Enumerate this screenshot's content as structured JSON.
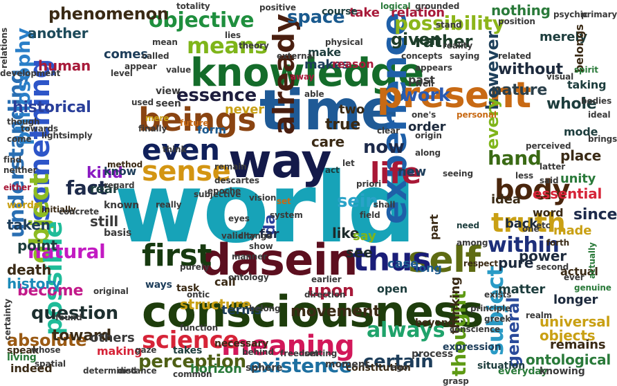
{
  "words": [
    {
      "text": "world",
      "color": "#17a3b8"
    },
    {
      "text": "consciousness",
      "color": "#1e3d0c"
    },
    {
      "text": "time",
      "color": "#1f5a96"
    },
    {
      "text": "knowledge",
      "color": "#146c2a"
    },
    {
      "text": "dasein",
      "color": "#5c0f1f"
    },
    {
      "text": "way",
      "color": "#141a4a"
    },
    {
      "text": "experience",
      "color": "#1e5fa8"
    },
    {
      "text": "present",
      "color": "#c86a14"
    },
    {
      "text": "beings",
      "color": "#8a4411"
    },
    {
      "text": "something",
      "color": "#2d55c8"
    },
    {
      "text": "first",
      "color": "#173a10"
    },
    {
      "text": "self",
      "color": "#5e6b12"
    },
    {
      "text": "thus",
      "color": "#1a1d78"
    },
    {
      "text": "meaning",
      "color": "#d2185a"
    },
    {
      "text": "object",
      "color": "#8dbb22"
    },
    {
      "text": "already",
      "color": "#4a1f10"
    },
    {
      "text": "sense",
      "color": "#d39512"
    },
    {
      "text": "even",
      "color": "#10205a"
    },
    {
      "text": "life",
      "color": "#a81836"
    },
    {
      "text": "body",
      "color": "#4a260d"
    },
    {
      "text": "possible",
      "color": "#1fbc99"
    },
    {
      "text": "truth",
      "color": "#c9a014"
    },
    {
      "text": "science",
      "color": "#d62438"
    },
    {
      "text": "existence",
      "color": "#1d6fa0"
    },
    {
      "text": "subject",
      "color": "#2a9bc6"
    },
    {
      "text": "understanding",
      "color": "#2a6fb3"
    },
    {
      "text": "philosophy",
      "color": "#2a7fc8"
    },
    {
      "text": "means",
      "color": "#7fb51a"
    },
    {
      "text": "objective",
      "color": "#1f8f3e"
    },
    {
      "text": "always",
      "color": "#1fa36b"
    },
    {
      "text": "perception",
      "color": "#4e5f15"
    },
    {
      "text": "thought",
      "color": "#5e9a14"
    },
    {
      "text": "within",
      "color": "#1d2f7a"
    },
    {
      "text": "natural",
      "color": "#c21ac2"
    },
    {
      "text": "question",
      "color": "#1d2f2f"
    },
    {
      "text": "essence",
      "color": "#1d1d3d"
    },
    {
      "text": "phenomenon",
      "color": "#3a2a15"
    },
    {
      "text": "space",
      "color": "#1a5a8e"
    },
    {
      "text": "fact",
      "color": "#1d2a4a"
    },
    {
      "text": "possibility",
      "color": "#8cb51a"
    },
    {
      "text": "however",
      "color": "#1d3f5a"
    },
    {
      "text": "hand",
      "color": "#3a6a14"
    },
    {
      "text": "given",
      "color": "#1d3d2a"
    },
    {
      "text": "sein",
      "color": "#2aa3c8"
    },
    {
      "text": "now",
      "color": "#1d2a4a"
    },
    {
      "text": "work",
      "color": "#2a5ab3"
    },
    {
      "text": "nature",
      "color": "#2a3f4a"
    },
    {
      "text": "upon",
      "color": "#a81a3a"
    },
    {
      "text": "certain",
      "color": "#1d3d5a"
    },
    {
      "text": "absolute",
      "color": "#9a5a14"
    },
    {
      "text": "general",
      "color": "#2a4a9a"
    },
    {
      "text": "become",
      "color": "#c21a8a"
    },
    {
      "text": "toward",
      "color": "#3a2a15"
    },
    {
      "text": "movement",
      "color": "#3a2a15"
    },
    {
      "text": "structure",
      "color": "#c9a014"
    },
    {
      "text": "rather",
      "color": "#1d3d2a"
    },
    {
      "text": "nothing",
      "color": "#2a7a3a"
    },
    {
      "text": "every",
      "color": "#7fb51a"
    },
    {
      "text": "whole",
      "color": "#1d3d3d"
    },
    {
      "text": "without",
      "color": "#1d2a3d"
    },
    {
      "text": "since",
      "color": "#1d2a4a"
    },
    {
      "text": "true",
      "color": "#3a2a15"
    },
    {
      "text": "another",
      "color": "#1d4a5a"
    },
    {
      "text": "human",
      "color": "#a81a3a"
    },
    {
      "text": "historical",
      "color": "#2a3f9a"
    },
    {
      "text": "kind",
      "color": "#8a1ac2"
    },
    {
      "text": "real",
      "color": "#1d3d3d"
    },
    {
      "text": "still",
      "color": "#3a3a3a"
    },
    {
      "text": "taken",
      "color": "#1d3d5a"
    },
    {
      "text": "point",
      "color": "#1d3d3d"
    },
    {
      "text": "death",
      "color": "#3a2a15"
    },
    {
      "text": "history",
      "color": "#1a8ab8"
    },
    {
      "text": "like",
      "color": "#1d2a2a"
    },
    {
      "text": "see",
      "color": "#1d2a2a"
    },
    {
      "text": "say",
      "color": "#7fb51a"
    },
    {
      "text": "terms",
      "color": "#1d3d5a"
    },
    {
      "text": "case",
      "color": "#1d5a8e"
    },
    {
      "text": "thinking",
      "color": "#3a2a15"
    },
    {
      "text": "objects",
      "color": "#c9a014"
    },
    {
      "text": "ontological",
      "color": "#2a7a3a"
    },
    {
      "text": "universal",
      "color": "#c9a014"
    },
    {
      "text": "remains",
      "color": "#3a2a15"
    },
    {
      "text": "others",
      "color": "#3a3a3a"
    },
    {
      "text": "making",
      "color": "#d62438"
    },
    {
      "text": "indeed",
      "color": "#3a2a15"
    },
    {
      "text": "horizon",
      "color": "#2a7a3a"
    },
    {
      "text": "pure",
      "color": "#1d2a3d"
    },
    {
      "text": "power",
      "color": "#1d2a3d"
    },
    {
      "text": "matter",
      "color": "#1d3d3d"
    },
    {
      "text": "actual",
      "color": "#3a2a15"
    },
    {
      "text": "longer",
      "color": "#1d2a3d"
    },
    {
      "text": "made",
      "color": "#c9a014"
    },
    {
      "text": "essential",
      "color": "#d62438"
    },
    {
      "text": "unity",
      "color": "#2a7a3a"
    },
    {
      "text": "idea",
      "color": "#3a2a15"
    },
    {
      "text": "place",
      "color": "#3a2a15"
    },
    {
      "text": "order",
      "color": "#1d2a3d"
    },
    {
      "text": "back",
      "color": "#1d2a3d"
    },
    {
      "text": "part",
      "color": "#3a2a15"
    },
    {
      "text": "new",
      "color": "#1d3d5a"
    },
    {
      "text": "two",
      "color": "#3a2a15"
    },
    {
      "text": "da",
      "color": "#2a3f9a"
    },
    {
      "text": "far",
      "color": "#1d2a4a"
    },
    {
      "text": "care",
      "color": "#3a2a15"
    },
    {
      "text": "never",
      "color": "#c9a014"
    },
    {
      "text": "form",
      "color": "#1d5a8e"
    },
    {
      "text": "makes",
      "color": "#1d3d5a"
    },
    {
      "text": "make",
      "color": "#1d3d3d"
    },
    {
      "text": "relation",
      "color": "#a81a3a"
    },
    {
      "text": "take",
      "color": "#a81a3a"
    },
    {
      "text": "merely",
      "color": "#1d3d3d"
    },
    {
      "text": "belongs",
      "color": "#3a2a15"
    },
    {
      "text": "taking",
      "color": "#1d3d3d"
    },
    {
      "text": "past",
      "color": "#3a3a3a"
    },
    {
      "text": "comes",
      "color": "#1d3d5a"
    },
    {
      "text": "course",
      "color": "#1d3d3d"
    },
    {
      "text": "reason",
      "color": "#a81a3a"
    },
    {
      "text": "know",
      "color": "#1d3d5a"
    },
    {
      "text": "word",
      "color": "#3a2a15"
    },
    {
      "text": "mode",
      "color": "#1d3d3d"
    },
    {
      "text": "view",
      "color": "#3a3a3a"
    },
    {
      "text": "seen",
      "color": "#3a3a3a"
    },
    {
      "text": "open",
      "color": "#1d3d3d"
    },
    {
      "text": "long",
      "color": "#1d5a8e"
    },
    {
      "text": "call",
      "color": "#3a2a15"
    },
    {
      "text": "ways",
      "color": "#1d3d5a"
    },
    {
      "text": "basis",
      "color": "#3a3a3a"
    },
    {
      "text": "task",
      "color": "#3a2a15"
    },
    {
      "text": "known",
      "color": "#3a3a3a"
    },
    {
      "text": "speak",
      "color": "#3a2a15"
    },
    {
      "text": "living",
      "color": "#2a7a3a"
    },
    {
      "text": "words",
      "color": "#c9a014"
    },
    {
      "text": "situation",
      "color": "#1d3d3d"
    },
    {
      "text": "sphere",
      "color": "#3a3a3a"
    },
    {
      "text": "necessary",
      "color": "#3a2a15"
    },
    {
      "text": "expression",
      "color": "#1d3d5a"
    },
    {
      "text": "process",
      "color": "#3a3a3a"
    },
    {
      "text": "beyond",
      "color": "#3a2a15"
    },
    {
      "text": "takes",
      "color": "#1d3d3d"
    },
    {
      "text": "constitution",
      "color": "#3a2a15"
    },
    {
      "text": "moment",
      "color": "#3a3a3a"
    },
    {
      "text": "common",
      "color": "#3a3a3a"
    },
    {
      "text": "everyday",
      "color": "#2a7a3a"
    },
    {
      "text": "knowing",
      "color": "#3a3a3a"
    },
    {
      "text": "genuine",
      "color": "#2a7a3a"
    },
    {
      "text": "actually",
      "color": "#2a7a3a"
    },
    {
      "text": "brings",
      "color": "#3a3a3a"
    },
    {
      "text": "future",
      "color": "#c86a14"
    },
    {
      "text": "mere",
      "color": "#c9a014"
    },
    {
      "text": "used",
      "color": "#3a3a3a"
    },
    {
      "text": "method",
      "color": "#3a2a15"
    },
    {
      "text": "regard",
      "color": "#3a3a3a"
    },
    {
      "text": "neither",
      "color": "#3a3a3a"
    },
    {
      "text": "either",
      "color": "#a81a3a"
    },
    {
      "text": "initially",
      "color": "#3a2a15"
    },
    {
      "text": "found",
      "color": "#3a3a3a"
    },
    {
      "text": "purely",
      "color": "#3a3a3a"
    },
    {
      "text": "among",
      "color": "#3a3a3a"
    },
    {
      "text": "respect",
      "color": "#3a2a15"
    },
    {
      "text": "forth",
      "color": "#3a2a15"
    },
    {
      "text": "latter",
      "color": "#3a3a3a"
    },
    {
      "text": "need",
      "color": "#1d3d3d"
    },
    {
      "text": "field",
      "color": "#3a3a3a"
    },
    {
      "text": "clear",
      "color": "#3a3a3a"
    },
    {
      "text": "act",
      "color": "#1d3d3d"
    },
    {
      "text": "set",
      "color": "#c86a14"
    },
    {
      "text": "priori",
      "color": "#3a3a3a"
    },
    {
      "text": "shall",
      "color": "#3a3a3a"
    },
    {
      "text": "origin",
      "color": "#3a3a3a"
    },
    {
      "text": "along",
      "color": "#3a3a3a"
    },
    {
      "text": "seeing",
      "color": "#3a3a3a"
    },
    {
      "text": "saying",
      "color": "#3a3a3a"
    },
    {
      "text": "appear",
      "color": "#3a3a3a"
    },
    {
      "text": "totality",
      "color": "#3a3a3a"
    },
    {
      "text": "logical",
      "color": "#2a7a3a"
    },
    {
      "text": "grounded",
      "color": "#3a3a3a"
    },
    {
      "text": "positive",
      "color": "#3a3a3a"
    },
    {
      "text": "value",
      "color": "#3a3a3a"
    },
    {
      "text": "theory",
      "color": "#3a3a3a"
    },
    {
      "text": "concepts",
      "color": "#3a3a3a"
    },
    {
      "text": "stand",
      "color": "#3a3a3a"
    },
    {
      "text": "reality",
      "color": "#3a3a3a"
    },
    {
      "text": "personal",
      "color": "#c86a14"
    },
    {
      "text": "position",
      "color": "#3a3a3a"
    },
    {
      "text": "primary",
      "color": "#3a3a3a"
    },
    {
      "text": "spirit",
      "color": "#2a7a3a"
    },
    {
      "text": "bodies",
      "color": "#3a3a3a"
    },
    {
      "text": "ideal",
      "color": "#3a3a3a"
    },
    {
      "text": "eyes",
      "color": "#3a3a3a"
    },
    {
      "text": "show",
      "color": "#3a3a3a"
    },
    {
      "text": "descartes",
      "color": "#3a3a3a"
    },
    {
      "text": "away",
      "color": "#a81a3a"
    },
    {
      "text": "able",
      "color": "#3a3a3a"
    },
    {
      "text": "mean",
      "color": "#3a3a3a"
    },
    {
      "text": "called",
      "color": "#3a3a3a"
    },
    {
      "text": "level",
      "color": "#3a3a3a"
    },
    {
      "text": "finally",
      "color": "#3a3a3a"
    },
    {
      "text": "think",
      "color": "#3a3a3a"
    },
    {
      "text": "really",
      "color": "#3a3a3a"
    },
    {
      "text": "find",
      "color": "#3a3a3a"
    },
    {
      "text": "come",
      "color": "#3a3a3a"
    },
    {
      "text": "though",
      "color": "#3a3a3a"
    },
    {
      "text": "towards",
      "color": "#3a3a3a"
    },
    {
      "text": "light",
      "color": "#3a3a3a"
    },
    {
      "text": "simply",
      "color": "#3a3a3a"
    },
    {
      "text": "concrete",
      "color": "#3a3a3a"
    },
    {
      "text": "epoche",
      "color": "#3a3a3a"
    },
    {
      "text": "system",
      "color": "#3a3a3a"
    },
    {
      "text": "ontic",
      "color": "#3a3a3a"
    },
    {
      "text": "ontology",
      "color": "#3a3a3a"
    },
    {
      "text": "whose",
      "color": "#3a3a3a"
    },
    {
      "text": "spatial",
      "color": "#3a3a3a"
    },
    {
      "text": "determined",
      "color": "#3a3a3a"
    },
    {
      "text": "distance",
      "color": "#3a3a3a"
    },
    {
      "text": "gaze",
      "color": "#3a3a3a"
    },
    {
      "text": "behind",
      "color": "#3a3a3a"
    },
    {
      "text": "freedom",
      "color": "#3a3a3a"
    },
    {
      "text": "setting",
      "color": "#3a3a3a"
    },
    {
      "text": "conscience",
      "color": "#3a3a3a"
    },
    {
      "text": "grasp",
      "color": "#3a3a3a"
    },
    {
      "text": "exists",
      "color": "#3a3a3a"
    },
    {
      "text": "second",
      "color": "#3a3a3a"
    },
    {
      "text": "principle",
      "color": "#3a3a3a"
    },
    {
      "text": "greek",
      "color": "#3a3a3a"
    },
    {
      "text": "realm",
      "color": "#3a3a3a"
    },
    {
      "text": "perceived",
      "color": "#3a3a3a"
    },
    {
      "text": "visual",
      "color": "#3a3a3a"
    },
    {
      "text": "psychic",
      "color": "#3a3a3a"
    },
    {
      "text": "related",
      "color": "#3a3a3a"
    },
    {
      "text": "appears",
      "color": "#3a3a3a"
    },
    {
      "text": "relations",
      "color": "#3a3a3a"
    },
    {
      "text": "development",
      "color": "#3a3a3a"
    },
    {
      "text": "external",
      "color": "#3a3a3a"
    },
    {
      "text": "physical",
      "color": "#3a3a3a"
    },
    {
      "text": "certainty",
      "color": "#3a3a3a"
    },
    {
      "text": "original",
      "color": "#3a3a3a"
    },
    {
      "text": "function",
      "color": "#3a3a3a"
    },
    {
      "text": "direction",
      "color": "#3a3a3a"
    },
    {
      "text": "belong",
      "color": "#3a3a3a"
    },
    {
      "text": "earlier",
      "color": "#3a3a3a"
    },
    {
      "text": "subjective",
      "color": "#3a3a3a"
    },
    {
      "text": "validity",
      "color": "#3a3a3a"
    },
    {
      "text": "change",
      "color": "#3a3a3a"
    },
    {
      "text": "vision",
      "color": "#3a3a3a"
    },
    {
      "text": "manner",
      "color": "#3a3a3a"
    },
    {
      "text": "remain",
      "color": "#3a3a3a"
    },
    {
      "text": "lies",
      "color": "#3a3a3a"
    },
    {
      "text": "let",
      "color": "#3a3a3a"
    },
    {
      "text": "ego",
      "color": "#3a3a3a"
    },
    {
      "text": "one",
      "color": "#3a3a3a"
    },
    {
      "text": "one's",
      "color": "#3a3a3a"
    },
    {
      "text": "said",
      "color": "#3a3a3a"
    },
    {
      "text": "less",
      "color": "#3a3a3a"
    },
    {
      "text": "well",
      "color": "#3a3a3a"
    },
    {
      "text": "etc",
      "color": "#3a3a3a"
    },
    {
      "text": "ever",
      "color": "#3a3a3a"
    },
    {
      "text": "put",
      "color": "#3a3a3a"
    },
    {
      "text": "use",
      "color": "#3a3a3a"
    },
    {
      "text": "knows",
      "color": "#3a3a3a"
    },
    {
      "text": "advance",
      "color": "#3a3a3a"
    },
    {
      "text": "gives",
      "color": "#3a3a3a"
    },
    {
      "text": "shape",
      "color": "#3a3a3a"
    },
    {
      "text": "least",
      "color": "#3a3a3a"
    },
    {
      "text": "based",
      "color": "#3a3a3a"
    },
    {
      "text": "side",
      "color": "#3a3a3a"
    },
    {
      "text": "exact",
      "color": "#3a3a3a"
    },
    {
      "text": "side",
      "color": "#3a3a3a"
    }
  ]
}
